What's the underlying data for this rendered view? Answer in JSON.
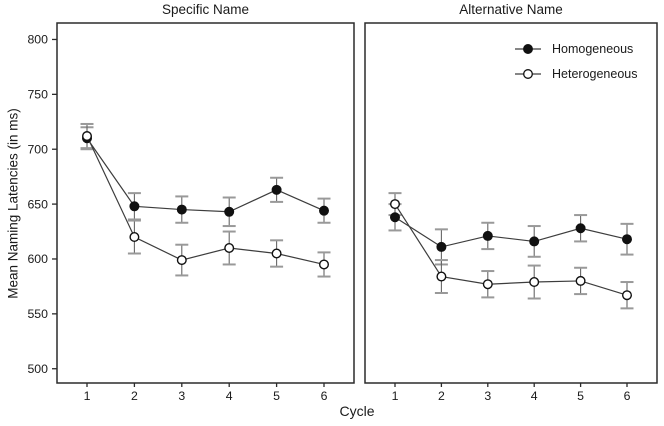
{
  "figure": {
    "y_axis_label": "Mean Naming Latencies (in ms)",
    "x_axis_label": "Cycle",
    "colors": {
      "foreground": "#1a1a1a",
      "panel_border": "#2b2b2b",
      "series_line": "#3d3d3d",
      "error_bar_line": "#666666",
      "error_bar_cap": "#999999",
      "marker_filled": "#111111",
      "marker_open_fill": "#ffffff",
      "background": "#ffffff"
    }
  },
  "legend": {
    "position": "top-right-of-right-panel",
    "items": [
      {
        "label": "Homogeneous",
        "marker": "filled-circle"
      },
      {
        "label": "Heterogeneous",
        "marker": "open-circle"
      }
    ]
  },
  "chart_data": [
    {
      "type": "line",
      "panel": "left",
      "title": "Specific Name",
      "xlabel": "Cycle",
      "ylabel": "Mean Naming Latencies (in ms)",
      "x": [
        1,
        2,
        3,
        4,
        5,
        6
      ],
      "yticks": [
        500,
        550,
        600,
        650,
        700,
        750,
        800
      ],
      "ylim": [
        487,
        815
      ],
      "grid": false,
      "series": [
        {
          "name": "Homogeneous",
          "marker": "filled-circle",
          "values": [
            710,
            648,
            645,
            643,
            663,
            644
          ],
          "errors": [
            10,
            12,
            12,
            13,
            11,
            11
          ]
        },
        {
          "name": "Heterogeneous",
          "marker": "open-circle",
          "values": [
            712,
            620,
            599,
            610,
            605,
            595
          ],
          "errors": [
            11,
            15,
            14,
            15,
            12,
            11
          ]
        }
      ]
    },
    {
      "type": "line",
      "panel": "right",
      "title": "Alternative Name",
      "xlabel": "Cycle",
      "ylabel": "Mean Naming Latencies (in ms)",
      "x": [
        1,
        2,
        3,
        4,
        5,
        6
      ],
      "yticks": [
        500,
        550,
        600,
        650,
        700,
        750,
        800
      ],
      "ylim": [
        487,
        815
      ],
      "grid": false,
      "series": [
        {
          "name": "Homogeneous",
          "marker": "filled-circle",
          "values": [
            638,
            611,
            621,
            616,
            628,
            618
          ],
          "errors": [
            12,
            16,
            12,
            14,
            12,
            14
          ]
        },
        {
          "name": "Heterogeneous",
          "marker": "open-circle",
          "values": [
            650,
            584,
            577,
            579,
            580,
            567
          ],
          "errors": [
            10,
            15,
            12,
            15,
            12,
            12
          ]
        }
      ]
    }
  ]
}
